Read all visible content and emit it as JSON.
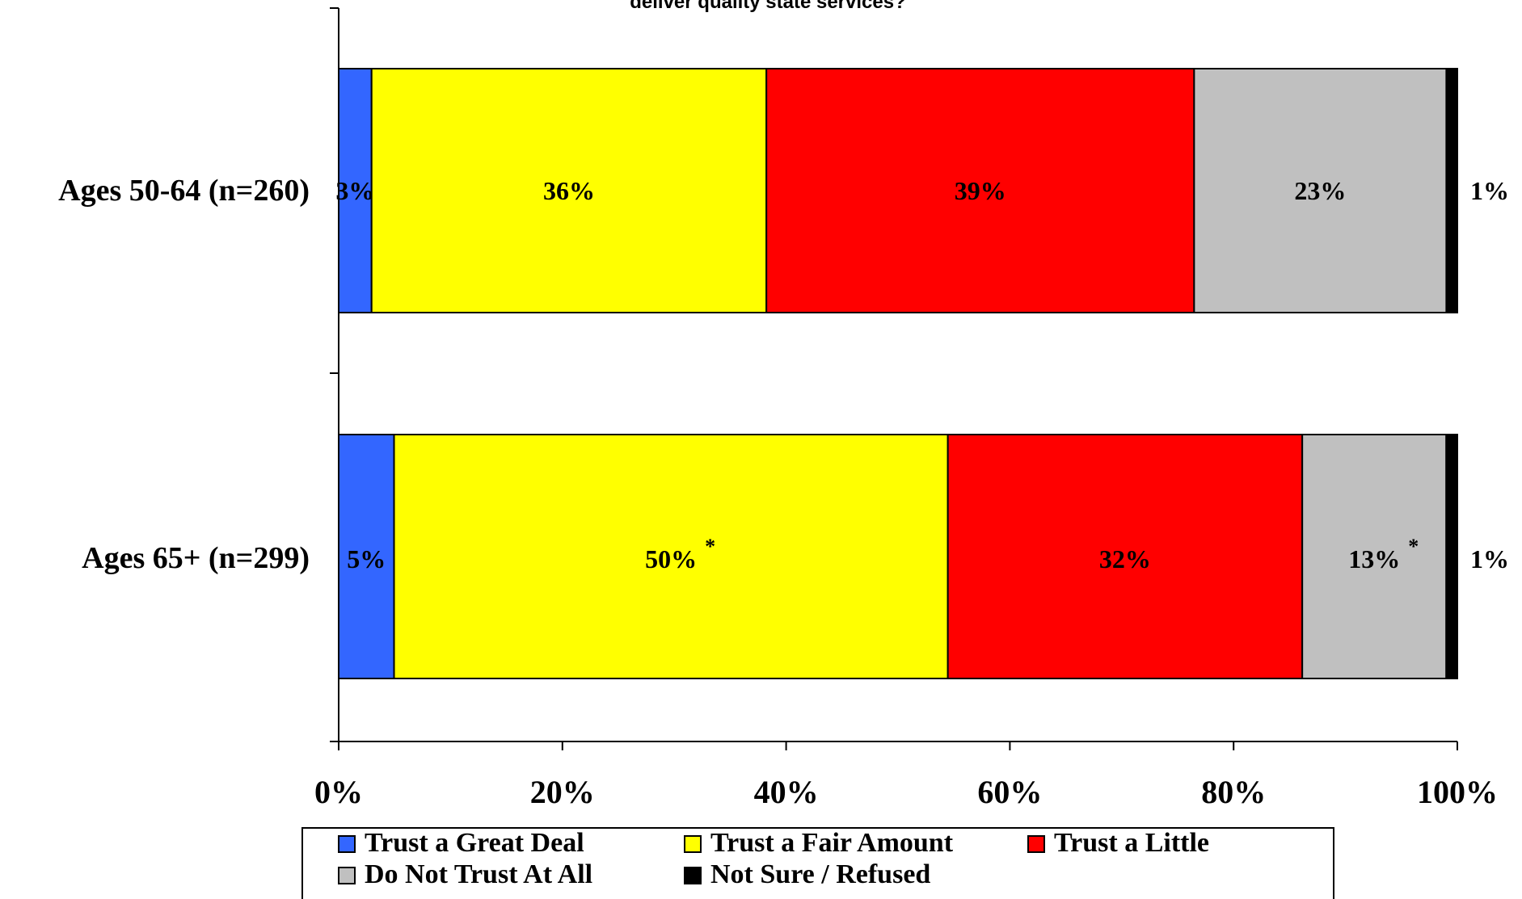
{
  "chart_data": {
    "type": "bar",
    "orientation": "horizontal",
    "stacked": true,
    "title": "deliver quality state services?",
    "categories": [
      "Ages 50-64 (n=260)",
      "Ages 65+ (n=299)"
    ],
    "series": [
      {
        "name": "Trust a Great Deal",
        "color": "#3366ff",
        "values": [
          3,
          5
        ],
        "labels": [
          "3%",
          "5%"
        ]
      },
      {
        "name": "Trust a Fair Amount",
        "color": "#ffff00",
        "values": [
          36,
          50
        ],
        "labels": [
          "36%",
          "50%"
        ]
      },
      {
        "name": "Trust a Little",
        "color": "#ff0000",
        "values": [
          39,
          32
        ],
        "labels": [
          "39%",
          "32%"
        ]
      },
      {
        "name": "Do Not Trust At All",
        "color": "#c0c0c0",
        "values": [
          23,
          13
        ],
        "labels": [
          "23%",
          "13%"
        ]
      },
      {
        "name": "Not Sure / Refused",
        "color": "#000000",
        "values": [
          1,
          1
        ],
        "labels": [
          "1%",
          "1%"
        ]
      }
    ],
    "annotations": [
      {
        "category": "Ages 65+ (n=299)",
        "series": "Trust a Fair Amount",
        "text": "*"
      },
      {
        "category": "Ages 65+ (n=299)",
        "series": "Do Not Trust At All",
        "text": "*"
      }
    ],
    "xlim": [
      0,
      100
    ],
    "xticks": [
      "0%",
      "20%",
      "40%",
      "60%",
      "80%",
      "100%"
    ],
    "grid": false,
    "legend_position": "bottom"
  }
}
